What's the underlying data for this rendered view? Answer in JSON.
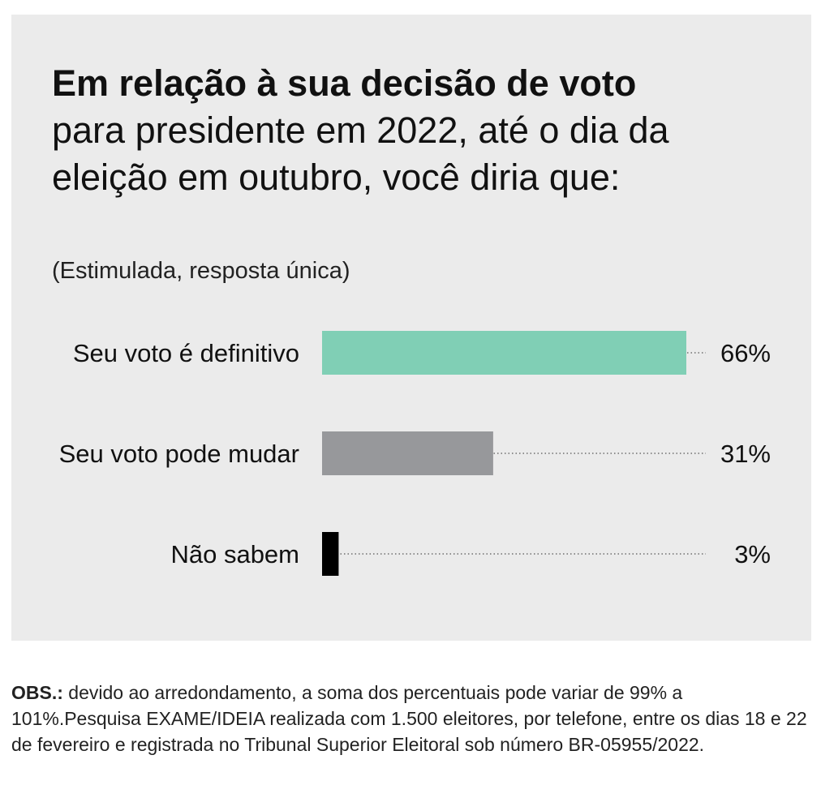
{
  "title": {
    "bold_part": "Em relação à sua decisão de voto",
    "regular_part": "para presidente em 2022, até o dia da eleição em outubro, você diria que:"
  },
  "subtitle": "(Estimulada, resposta única)",
  "chart_data": {
    "type": "bar",
    "orientation": "horizontal",
    "categories": [
      "Seu voto é definitivo",
      "Seu voto pode mudar",
      "Não sabem"
    ],
    "values": [
      66,
      31,
      3
    ],
    "value_labels": [
      "66%",
      "31%",
      "3%"
    ],
    "colors": [
      "#80cfb5",
      "#97989b",
      "#000000"
    ],
    "xlim": [
      0,
      66
    ],
    "grid": false,
    "legend": "none"
  },
  "note": {
    "label": "OBS.:",
    "text": "devido ao arredondamento, a soma dos percentuais pode variar de 99% a 101%.Pesquisa EXAME/IDEIA realizada com 1.500 eleitores, por telefone, entre os dias 18 e 22 de fevereiro e registrada no Tribunal Superior Eleitoral sob número BR-05955/2022."
  },
  "colors": {
    "panel_background": "#ebebeb",
    "dotted_leader": "#555555"
  }
}
